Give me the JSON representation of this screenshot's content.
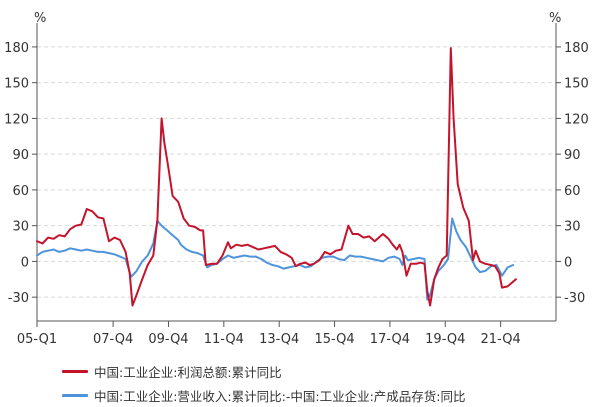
{
  "chart_data": {
    "type": "line",
    "title": "",
    "y_unit_left": "%",
    "y_unit_right": "%",
    "ylim": [
      -50,
      190
    ],
    "yticks": [
      -30,
      0,
      30,
      60,
      90,
      120,
      150,
      180
    ],
    "xlim": [
      2005.0,
      2023.75
    ],
    "xtick_labels": [
      "05-Q1",
      "07-Q4",
      "09-Q4",
      "11-Q4",
      "13-Q4",
      "15-Q4",
      "17-Q4",
      "19-Q4",
      "21-Q4"
    ],
    "xtick_values": [
      2005.0,
      2007.75,
      2009.75,
      2011.75,
      2013.75,
      2015.75,
      2017.75,
      2019.75,
      2021.75
    ],
    "grid": "horizontal-dashed",
    "legend_position": "bottom-left",
    "series": [
      {
        "name": "中国:工业企业:利润总额:累计同比",
        "color": "#c4142c",
        "points": [
          [
            2005.0,
            17
          ],
          [
            2005.2,
            15
          ],
          [
            2005.4,
            20
          ],
          [
            2005.6,
            19
          ],
          [
            2005.8,
            22
          ],
          [
            2006.0,
            21
          ],
          [
            2006.2,
            27
          ],
          [
            2006.4,
            30
          ],
          [
            2006.6,
            31
          ],
          [
            2006.8,
            44
          ],
          [
            2007.0,
            42
          ],
          [
            2007.2,
            37
          ],
          [
            2007.4,
            36
          ],
          [
            2007.6,
            17
          ],
          [
            2007.8,
            20
          ],
          [
            2008.0,
            18
          ],
          [
            2008.2,
            8
          ],
          [
            2008.35,
            -10
          ],
          [
            2008.45,
            -37
          ],
          [
            2008.6,
            -28
          ],
          [
            2008.8,
            -15
          ],
          [
            2009.0,
            -3
          ],
          [
            2009.2,
            5
          ],
          [
            2009.35,
            35
          ],
          [
            2009.5,
            120
          ],
          [
            2009.6,
            100
          ],
          [
            2009.75,
            78
          ],
          [
            2009.9,
            55
          ],
          [
            2010.1,
            50
          ],
          [
            2010.3,
            36
          ],
          [
            2010.5,
            30
          ],
          [
            2010.7,
            29
          ],
          [
            2010.9,
            26
          ],
          [
            2011.0,
            26
          ],
          [
            2011.1,
            -3
          ],
          [
            2011.3,
            -2
          ],
          [
            2011.5,
            -2
          ],
          [
            2011.7,
            5
          ],
          [
            2011.9,
            16
          ],
          [
            2012.0,
            11
          ],
          [
            2012.2,
            14
          ],
          [
            2012.4,
            13
          ],
          [
            2012.6,
            14
          ],
          [
            2012.8,
            12
          ],
          [
            2013.0,
            10
          ],
          [
            2013.2,
            11
          ],
          [
            2013.4,
            12
          ],
          [
            2013.6,
            13
          ],
          [
            2013.8,
            8
          ],
          [
            2014.0,
            6
          ],
          [
            2014.2,
            3
          ],
          [
            2014.35,
            -4
          ],
          [
            2014.5,
            -2
          ],
          [
            2014.7,
            -1
          ],
          [
            2014.85,
            -3
          ],
          [
            2015.0,
            -2
          ],
          [
            2015.2,
            1
          ],
          [
            2015.4,
            8
          ],
          [
            2015.6,
            6
          ],
          [
            2015.8,
            9
          ],
          [
            2016.0,
            10
          ],
          [
            2016.25,
            30
          ],
          [
            2016.4,
            23
          ],
          [
            2016.6,
            23
          ],
          [
            2016.8,
            20
          ],
          [
            2017.0,
            21
          ],
          [
            2017.2,
            17
          ],
          [
            2017.35,
            20
          ],
          [
            2017.5,
            23
          ],
          [
            2017.7,
            19
          ],
          [
            2017.85,
            14
          ],
          [
            2018.0,
            10
          ],
          [
            2018.1,
            14
          ],
          [
            2018.2,
            8
          ],
          [
            2018.35,
            -12
          ],
          [
            2018.5,
            -2
          ],
          [
            2018.7,
            -2
          ],
          [
            2018.85,
            -1
          ],
          [
            2019.0,
            -2
          ],
          [
            2019.1,
            -25
          ],
          [
            2019.2,
            -37
          ],
          [
            2019.35,
            -15
          ],
          [
            2019.5,
            -5
          ],
          [
            2019.65,
            2
          ],
          [
            2019.8,
            5
          ],
          [
            2019.95,
            179
          ],
          [
            2020.05,
            120
          ],
          [
            2020.2,
            65
          ],
          [
            2020.4,
            45
          ],
          [
            2020.6,
            34
          ],
          [
            2020.75,
            1
          ],
          [
            2020.85,
            9
          ],
          [
            2021.0,
            0
          ],
          [
            2021.2,
            -2
          ],
          [
            2021.4,
            -3
          ],
          [
            2021.55,
            -4
          ],
          [
            2021.7,
            -10
          ],
          [
            2021.8,
            -22
          ],
          [
            2022.0,
            -21
          ],
          [
            2022.15,
            -18
          ],
          [
            2022.3,
            -15
          ]
        ]
      },
      {
        "name": "中国:工业企业:营业收入:累计同比:-中国:工业企业:产成品存货:同比",
        "color": "#4d94dc",
        "points": [
          [
            2005.0,
            5
          ],
          [
            2005.2,
            8
          ],
          [
            2005.4,
            9
          ],
          [
            2005.6,
            10
          ],
          [
            2005.8,
            8
          ],
          [
            2006.0,
            9
          ],
          [
            2006.2,
            11
          ],
          [
            2006.4,
            10
          ],
          [
            2006.6,
            9
          ],
          [
            2006.8,
            10
          ],
          [
            2007.0,
            9
          ],
          [
            2007.2,
            8
          ],
          [
            2007.4,
            8
          ],
          [
            2007.6,
            7
          ],
          [
            2007.8,
            6
          ],
          [
            2008.0,
            4
          ],
          [
            2008.2,
            2
          ],
          [
            2008.4,
            -13
          ],
          [
            2008.6,
            -8
          ],
          [
            2008.8,
            0
          ],
          [
            2009.0,
            5
          ],
          [
            2009.2,
            15
          ],
          [
            2009.35,
            34
          ],
          [
            2009.5,
            30
          ],
          [
            2009.7,
            26
          ],
          [
            2009.9,
            22
          ],
          [
            2010.1,
            18
          ],
          [
            2010.2,
            14
          ],
          [
            2010.4,
            10
          ],
          [
            2010.6,
            8
          ],
          [
            2010.8,
            7
          ],
          [
            2011.0,
            5
          ],
          [
            2011.15,
            -5
          ],
          [
            2011.3,
            -3
          ],
          [
            2011.5,
            -2
          ],
          [
            2011.7,
            2
          ],
          [
            2011.9,
            5
          ],
          [
            2012.1,
            3
          ],
          [
            2012.3,
            4
          ],
          [
            2012.5,
            5
          ],
          [
            2012.7,
            4
          ],
          [
            2012.9,
            4
          ],
          [
            2013.1,
            2
          ],
          [
            2013.3,
            -1
          ],
          [
            2013.5,
            -3
          ],
          [
            2013.7,
            -4
          ],
          [
            2013.9,
            -6
          ],
          [
            2014.1,
            -5
          ],
          [
            2014.3,
            -4
          ],
          [
            2014.5,
            -3
          ],
          [
            2014.7,
            -5
          ],
          [
            2014.9,
            -4
          ],
          [
            2015.1,
            0
          ],
          [
            2015.3,
            3
          ],
          [
            2015.5,
            4
          ],
          [
            2015.7,
            4
          ],
          [
            2015.9,
            2
          ],
          [
            2016.1,
            1
          ],
          [
            2016.3,
            5
          ],
          [
            2016.5,
            4
          ],
          [
            2016.7,
            4
          ],
          [
            2016.9,
            3
          ],
          [
            2017.1,
            2
          ],
          [
            2017.3,
            1
          ],
          [
            2017.5,
            0
          ],
          [
            2017.7,
            3
          ],
          [
            2017.9,
            4
          ],
          [
            2018.1,
            2
          ],
          [
            2018.2,
            -3
          ],
          [
            2018.3,
            5
          ],
          [
            2018.4,
            1
          ],
          [
            2018.6,
            2
          ],
          [
            2018.8,
            3
          ],
          [
            2019.0,
            2
          ],
          [
            2019.1,
            -32
          ],
          [
            2019.2,
            -28
          ],
          [
            2019.35,
            -15
          ],
          [
            2019.5,
            -8
          ],
          [
            2019.7,
            -3
          ],
          [
            2019.85,
            2
          ],
          [
            2020.0,
            36
          ],
          [
            2020.15,
            25
          ],
          [
            2020.3,
            18
          ],
          [
            2020.5,
            12
          ],
          [
            2020.7,
            2
          ],
          [
            2020.85,
            -5
          ],
          [
            2021.0,
            -9
          ],
          [
            2021.2,
            -8
          ],
          [
            2021.4,
            -4
          ],
          [
            2021.6,
            -3
          ],
          [
            2021.8,
            -12
          ],
          [
            2022.0,
            -5
          ],
          [
            2022.2,
            -3
          ]
        ]
      }
    ]
  }
}
